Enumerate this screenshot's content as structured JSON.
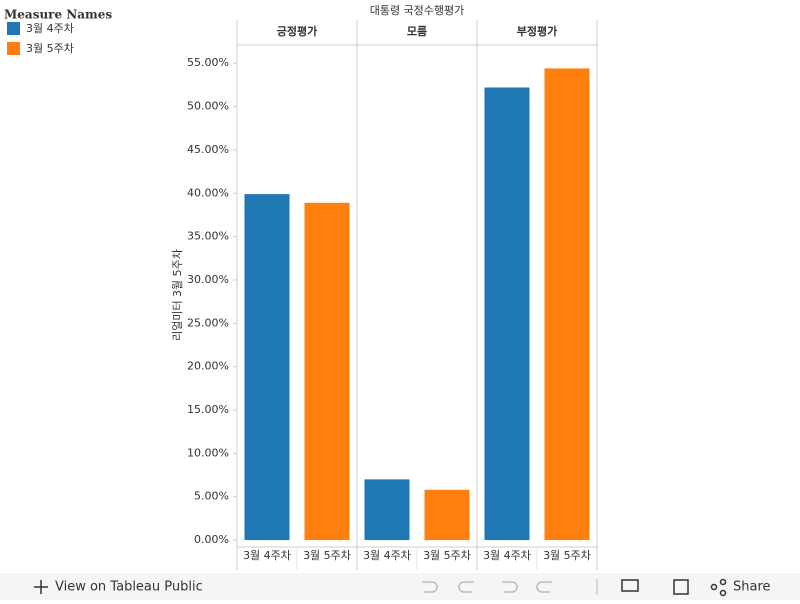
{
  "chart_data": {
    "type": "bar",
    "title": "대통령 국정수행평가",
    "y_label": "리얼미터 3월 5주차",
    "legend_title": "Measure Names",
    "facets": [
      "긍정평가",
      "모름",
      "부정평가"
    ],
    "series": [
      {
        "name": "3월 4주차",
        "color": "#1f77b4",
        "values": [
          39.9,
          7.0,
          52.2
        ]
      },
      {
        "name": "3월 5주차",
        "color": "#ff7f0e",
        "values": [
          38.9,
          5.8,
          54.4
        ]
      }
    ],
    "ylim": [
      -0.8,
      57.1
    ],
    "yticks": [
      {
        "value": 0,
        "label": "0.00%"
      },
      {
        "value": 5,
        "label": "5.00%"
      },
      {
        "value": 10,
        "label": "10.00%"
      },
      {
        "value": 15,
        "label": "15.00%"
      },
      {
        "value": 20,
        "label": "20.00%"
      },
      {
        "value": 25,
        "label": "25.00%"
      },
      {
        "value": 30,
        "label": "30.00%"
      },
      {
        "value": 35,
        "label": "35.00%"
      },
      {
        "value": 40,
        "label": "40.00%"
      },
      {
        "value": 45,
        "label": "45.00%"
      },
      {
        "value": 50,
        "label": "50.00%"
      },
      {
        "value": 55,
        "label": "55.00%"
      }
    ]
  },
  "toolbar": {
    "view": "View on Tableau Public",
    "share": "Share"
  }
}
